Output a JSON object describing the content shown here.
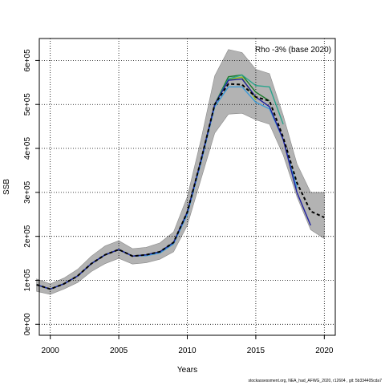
{
  "chart_data": {
    "type": "line",
    "title": "",
    "xlabel": "Years",
    "ylabel": "SSB",
    "annotation": "Rho -3% (base 2020)",
    "xlim": [
      1999.2,
      2020.8
    ],
    "ylim": [
      -25000,
      650000
    ],
    "x_ticks": [
      2000,
      2005,
      2010,
      2015,
      2020
    ],
    "x_tick_labels": [
      "2000",
      "2005",
      "2010",
      "2015",
      "2020"
    ],
    "y_ticks": [
      0,
      100000,
      200000,
      300000,
      400000,
      500000,
      600000
    ],
    "y_tick_labels": [
      "0e+00",
      "1e+05",
      "2e+05",
      "3e+05",
      "4e+05",
      "5e+05",
      "6e+05"
    ],
    "grid": true,
    "confidence_band": {
      "x": [
        1999,
        2000,
        2001,
        2002,
        2003,
        2004,
        2005,
        2006,
        2007,
        2008,
        2009,
        2010,
        2011,
        2012,
        2013,
        2014,
        2015,
        2016,
        2017,
        2018,
        2019,
        2020
      ],
      "lower": [
        75000,
        68000,
        80000,
        95000,
        120000,
        138000,
        150000,
        137000,
        140000,
        148000,
        165000,
        225000,
        330000,
        435000,
        478000,
        480000,
        465000,
        455000,
        385000,
        290000,
        215000,
        195000
      ],
      "upper": [
        103000,
        92000,
        105000,
        125000,
        155000,
        178000,
        190000,
        172000,
        175000,
        185000,
        210000,
        290000,
        420000,
        565000,
        625000,
        618000,
        580000,
        570000,
        475000,
        365000,
        300000,
        300000
      ]
    },
    "series": [
      {
        "color": "#000000",
        "dashed": true,
        "x": [
          1999,
          2000,
          2001,
          2002,
          2003,
          2004,
          2005,
          2006,
          2007,
          2008,
          2009,
          2010,
          2011,
          2012,
          2013,
          2014,
          2015,
          2016,
          2017,
          2018,
          2019,
          2020
        ],
        "values": [
          90000,
          80000,
          92000,
          110000,
          138000,
          158000,
          170000,
          155000,
          158000,
          165000,
          186000,
          255000,
          373000,
          500000,
          547000,
          545000,
          517000,
          508000,
          425000,
          322000,
          257000,
          243000
        ]
      },
      {
        "color": "#1f1f9e",
        "x": [
          1999,
          2000,
          2001,
          2002,
          2003,
          2004,
          2005,
          2006,
          2007,
          2008,
          2009,
          2010,
          2011,
          2012,
          2013,
          2014,
          2015,
          2016,
          2017,
          2018,
          2019
        ],
        "values": [
          90000,
          80000,
          92000,
          110000,
          138000,
          158000,
          170000,
          155000,
          158000,
          165000,
          186000,
          255000,
          373000,
          500000,
          555000,
          558000,
          517000,
          495000,
          420000,
          300000,
          225000
        ]
      },
      {
        "color": "#3c9bd8",
        "x": [
          1999,
          2000,
          2001,
          2002,
          2003,
          2004,
          2005,
          2006,
          2007,
          2008,
          2009,
          2010,
          2011,
          2012,
          2013,
          2014,
          2015,
          2016,
          2017,
          2018
        ],
        "values": [
          90000,
          80000,
          92000,
          110000,
          138000,
          158000,
          170000,
          155000,
          156000,
          162000,
          183000,
          250000,
          368000,
          495000,
          540000,
          540000,
          505000,
          490000,
          420000,
          310000
        ]
      },
      {
        "color": "#2aa58c",
        "x": [
          1999,
          2000,
          2001,
          2002,
          2003,
          2004,
          2005,
          2006,
          2007,
          2008,
          2009,
          2010,
          2011,
          2012,
          2013,
          2014,
          2015,
          2016,
          2017
        ],
        "values": [
          90000,
          80000,
          92000,
          110000,
          138000,
          158000,
          170000,
          155000,
          158000,
          165000,
          186000,
          255000,
          373000,
          500000,
          558000,
          567000,
          543000,
          540000,
          455000
        ]
      },
      {
        "color": "#1a7a2a",
        "x": [
          1999,
          2000,
          2001,
          2002,
          2003,
          2004,
          2005,
          2006,
          2007,
          2008,
          2009,
          2010,
          2011,
          2012,
          2013,
          2014,
          2015,
          2016
        ],
        "values": [
          90000,
          80000,
          92000,
          110000,
          138000,
          158000,
          170000,
          155000,
          158000,
          165000,
          186000,
          255000,
          373000,
          500000,
          563000,
          567000,
          528000,
          508000
        ]
      },
      {
        "color": "#8fbf1f",
        "x": [
          1999,
          2000,
          2001,
          2002,
          2003,
          2004,
          2005,
          2006,
          2007,
          2008,
          2009,
          2010,
          2011,
          2012,
          2013,
          2014,
          2015
        ],
        "values": [
          90000,
          80000,
          92000,
          110000,
          138000,
          158000,
          170000,
          155000,
          158000,
          165000,
          186000,
          255000,
          373000,
          500000,
          557000,
          562000,
          510000
        ]
      }
    ]
  },
  "footer_text": "stockassessment.org, NEA_had_AFWG_2020, r12604 , git: 5b334405cda7"
}
